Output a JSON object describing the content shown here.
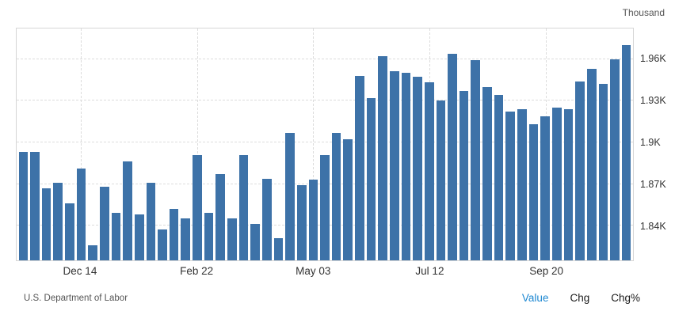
{
  "header": {
    "unit_label": "Thousand"
  },
  "footer": {
    "source": "U.S. Department of Labor",
    "toggles": [
      {
        "label": "Value",
        "active": true
      },
      {
        "label": "Chg",
        "active": false
      },
      {
        "label": "Chg%",
        "active": false
      }
    ]
  },
  "colors": {
    "bar": "#3d72a8",
    "grid": "#dcdcdc",
    "plot_border": "#d6d6d6",
    "active_toggle": "#1e88d2",
    "text": "#333333",
    "muted_text": "#555555"
  },
  "chart_data": {
    "type": "bar",
    "title": "",
    "xlabel": "",
    "ylabel": "Thousand",
    "unit": "Thousand",
    "grid": "dashed",
    "legend_position": "none",
    "ylim": [
      1815,
      1982
    ],
    "y_ticks": [
      {
        "value": 1840,
        "label": "1.84K"
      },
      {
        "value": 1870,
        "label": "1.87K"
      },
      {
        "value": 1900,
        "label": "1.9K"
      },
      {
        "value": 1930,
        "label": "1.93K"
      },
      {
        "value": 1960,
        "label": "1.96K"
      }
    ],
    "x_tick_labels": [
      {
        "index": 5,
        "label": "Dec 14"
      },
      {
        "index": 15,
        "label": "Feb 22"
      },
      {
        "index": 25,
        "label": "May 03"
      },
      {
        "index": 35,
        "label": "Jul 12"
      },
      {
        "index": 45,
        "label": "Sep 20"
      }
    ],
    "values": [
      1893,
      1893,
      1867,
      1871,
      1856,
      1881,
      1826,
      1868,
      1849,
      1886,
      1848,
      1871,
      1837,
      1852,
      1845,
      1891,
      1849,
      1877,
      1845,
      1891,
      1841,
      1874,
      1831,
      1907,
      1869,
      1873,
      1891,
      1907,
      1902,
      1948,
      1932,
      1962,
      1951,
      1950,
      1947,
      1943,
      1930,
      1964,
      1937,
      1959,
      1940,
      1934,
      1922,
      1924,
      1913,
      1919,
      1925,
      1924,
      1944,
      1953,
      1942,
      1960,
      1970
    ]
  }
}
